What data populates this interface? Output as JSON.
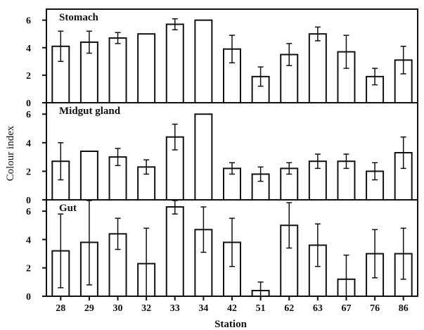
{
  "chart_data": {
    "type": "bar",
    "xlabel": "Station",
    "ylabel": "Colour index",
    "categories": [
      "28",
      "29",
      "30",
      "32",
      "33",
      "34",
      "42",
      "51",
      "62",
      "63",
      "67",
      "76",
      "86"
    ],
    "yticks": [
      0,
      2,
      4,
      6
    ],
    "ylim": [
      0,
      6.8
    ],
    "grid": false,
    "panels": [
      {
        "title": "Stomach",
        "values": [
          4.1,
          4.4,
          4.7,
          5.0,
          5.7,
          6.0,
          3.9,
          1.9,
          3.5,
          5.0,
          3.7,
          1.9,
          3.1
        ],
        "errors": [
          1.1,
          0.8,
          0.4,
          0,
          0.4,
          0,
          1.0,
          0.7,
          0.8,
          0.5,
          1.2,
          0.6,
          1.0
        ]
      },
      {
        "title": "Midgut gland",
        "values": [
          2.7,
          3.4,
          3.0,
          2.3,
          4.4,
          6.0,
          2.2,
          1.8,
          2.2,
          2.7,
          2.7,
          2.0,
          3.3
        ],
        "errors": [
          1.3,
          0,
          0.6,
          0.5,
          0.9,
          0,
          0.4,
          0.5,
          0.4,
          0.5,
          0.5,
          0.6,
          1.1
        ]
      },
      {
        "title": "Gut",
        "values": [
          3.2,
          3.8,
          4.4,
          2.3,
          6.3,
          4.7,
          3.8,
          0.4,
          5.0,
          3.6,
          1.2,
          3.0,
          3.0
        ],
        "errors": [
          2.6,
          3.0,
          1.1,
          2.5,
          0.5,
          1.6,
          1.7,
          0.6,
          1.6,
          1.5,
          1.7,
          1.7,
          1.8
        ]
      }
    ]
  }
}
